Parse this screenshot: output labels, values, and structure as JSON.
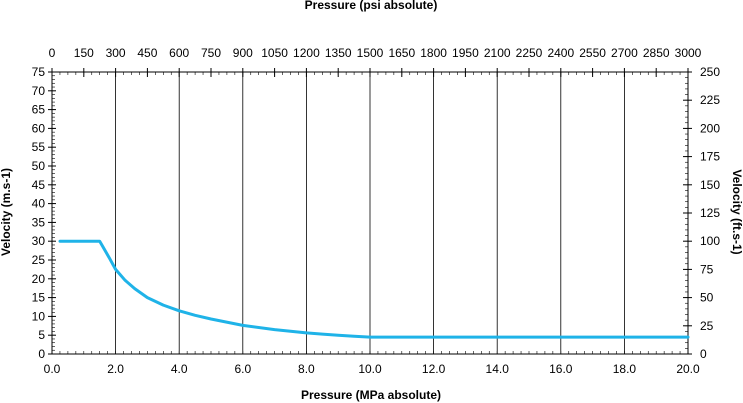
{
  "chart_data": {
    "type": "line",
    "title": "",
    "xlabel": "Pressure (MPa absolute)",
    "x2label": "Pressure (psi absolute)",
    "ylabel": "Velocity (m.s-1)",
    "y2label": "Velocity (ft.s-1)",
    "xlim": [
      0,
      20
    ],
    "ylim": [
      0,
      75
    ],
    "x2lim": [
      0,
      3000
    ],
    "y2lim": [
      0,
      250
    ],
    "grid": true,
    "x_ticks": [
      "0.0",
      "2.0",
      "4.0",
      "6.0",
      "8.0",
      "10.0",
      "12.0",
      "14.0",
      "16.0",
      "18.0",
      "20.0"
    ],
    "x_tick_values": [
      0,
      2,
      4,
      6,
      8,
      10,
      12,
      14,
      16,
      18,
      20
    ],
    "y_ticks": [
      "0",
      "5",
      "10",
      "15",
      "20",
      "25",
      "30",
      "35",
      "40",
      "45",
      "50",
      "55",
      "60",
      "65",
      "70",
      "75"
    ],
    "y_tick_values": [
      0,
      5,
      10,
      15,
      20,
      25,
      30,
      35,
      40,
      45,
      50,
      55,
      60,
      65,
      70,
      75
    ],
    "x2_ticks": [
      "0",
      "150",
      "300",
      "450",
      "600",
      "750",
      "900",
      "1050",
      "1200",
      "1350",
      "1500",
      "1650",
      "1800",
      "1950",
      "2100",
      "2250",
      "2400",
      "2550",
      "2700",
      "2850",
      "3000"
    ],
    "x2_tick_values": [
      0,
      150,
      300,
      450,
      600,
      750,
      900,
      1050,
      1200,
      1350,
      1500,
      1650,
      1800,
      1950,
      2100,
      2250,
      2400,
      2550,
      2700,
      2850,
      3000
    ],
    "y2_ticks": [
      "0",
      "25",
      "50",
      "75",
      "100",
      "125",
      "150",
      "175",
      "200",
      "225",
      "250"
    ],
    "y2_tick_values": [
      0,
      25,
      50,
      75,
      100,
      125,
      150,
      175,
      200,
      225,
      250
    ],
    "series": [
      {
        "name": "Velocity",
        "color": "#1fb3e8",
        "x": [
          0.25,
          1.5,
          1.6,
          1.8,
          2.0,
          2.3,
          2.6,
          3.0,
          3.5,
          4.0,
          4.5,
          5.0,
          6.0,
          7.0,
          8.0,
          8.5,
          9.0,
          9.5,
          10.0,
          12.0,
          14.0,
          16.0,
          18.0,
          20.0
        ],
        "y": [
          30.0,
          30.0,
          28.5,
          25.6,
          22.5,
          19.6,
          17.4,
          15.0,
          13.0,
          11.5,
          10.3,
          9.3,
          7.6,
          6.5,
          5.6,
          5.3,
          5.0,
          4.7,
          4.5,
          4.5,
          4.5,
          4.5,
          4.5,
          4.5
        ]
      }
    ]
  }
}
